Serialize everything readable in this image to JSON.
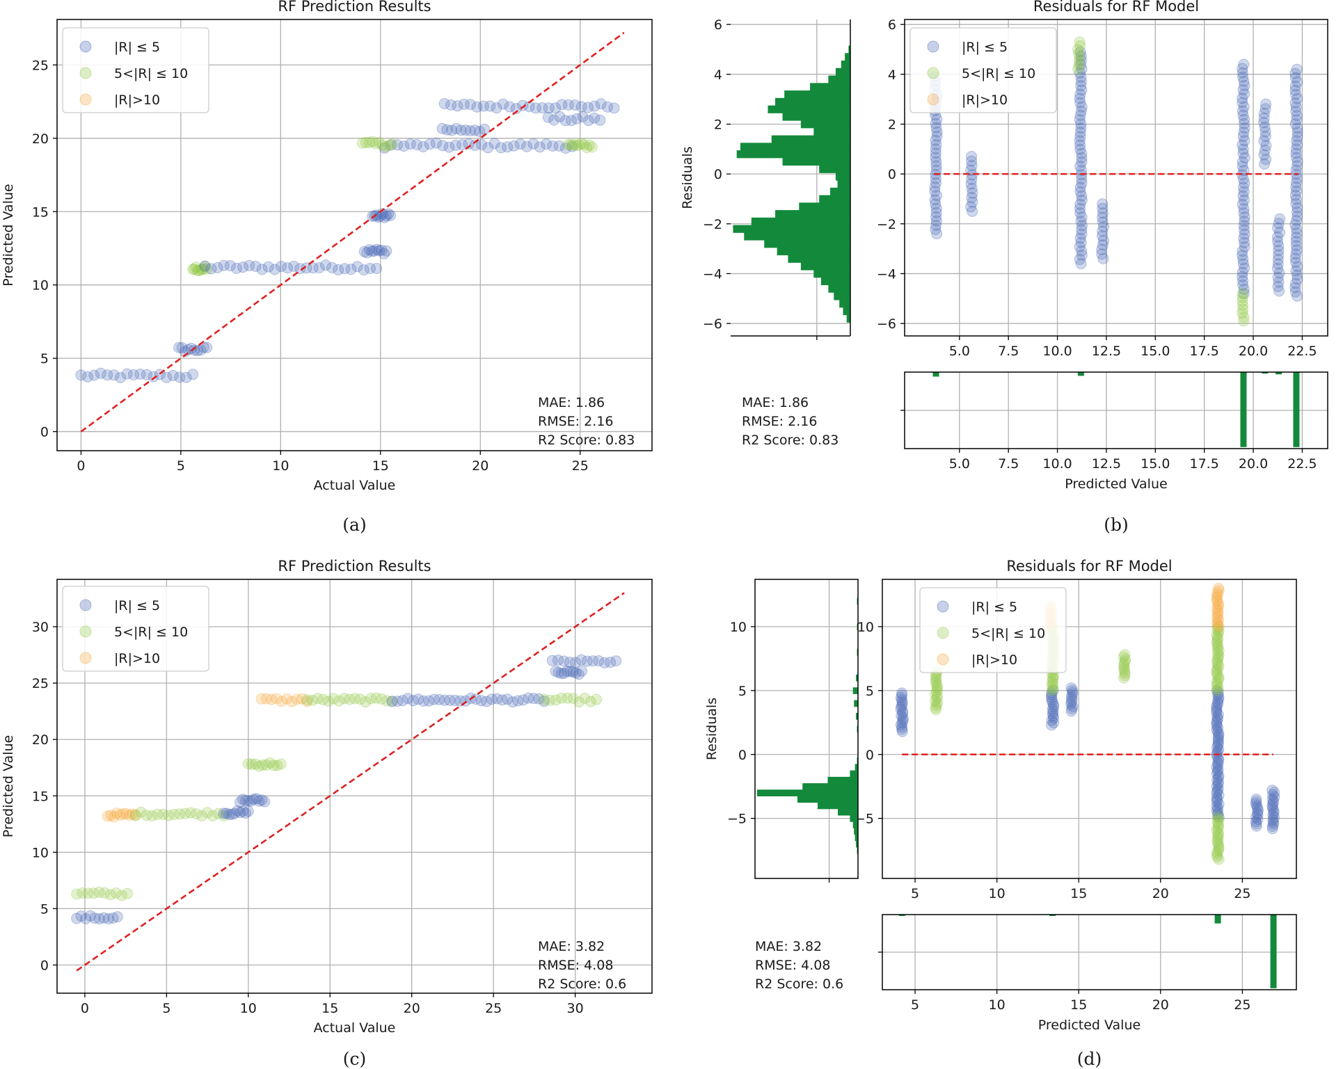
{
  "colors": {
    "low": "#4464b4",
    "mid": "#8fc641",
    "high": "#f6a63a",
    "ideal": "#e02020",
    "hist": "#138a3b",
    "grid": "#b0b0b0",
    "axis": "#000000"
  },
  "legend": {
    "low": "|R| ≤ 5",
    "mid": "5<|R| ≤ 10",
    "high": "|R|>10"
  },
  "chart_data": [
    {
      "id": "a",
      "type": "scatter",
      "caption": "(a)",
      "title": "RF Prediction Results",
      "xlabel": "Actual Value",
      "ylabel": "Predicted Value",
      "xlim": [
        -1.2,
        28.6
      ],
      "ylim": [
        -1.3,
        28.1
      ],
      "xticks": [
        "0",
        "5",
        "10",
        "15",
        "20",
        "25"
      ],
      "yticks": [
        "0",
        "5",
        "10",
        "15",
        "20",
        "25"
      ],
      "ideal_line": [
        [
          0,
          0
        ],
        [
          27.2,
          27.2
        ]
      ],
      "metrics": [
        "MAE: 1.86",
        "RMSE: 2.16",
        "R2 Score: 0.83"
      ],
      "clusters": [
        {
          "x": [
            0,
            5.6
          ],
          "y": 3.8,
          "cls": "low"
        },
        {
          "x": [
            4.9,
            6.3
          ],
          "y": 5.6,
          "cls": "low"
        },
        {
          "x": [
            5.6,
            6.3
          ],
          "y": 11.1,
          "cls": "mid"
        },
        {
          "x": [
            6.2,
            14.8
          ],
          "y": 11.2,
          "cls": "low"
        },
        {
          "x": [
            14.2,
            15.3
          ],
          "y": 12.3,
          "cls": "low"
        },
        {
          "x": [
            14.6,
            15.5
          ],
          "y": 14.7,
          "cls": "low"
        },
        {
          "x": [
            15.2,
            24.6
          ],
          "y": 19.5,
          "cls": "low"
        },
        {
          "x": [
            14.1,
            15.6
          ],
          "y": 19.6,
          "cls": "mid"
        },
        {
          "x": [
            24.4,
            25.6
          ],
          "y": 19.5,
          "cls": "mid"
        },
        {
          "x": [
            18.1,
            20.2
          ],
          "y": 20.6,
          "cls": "low"
        },
        {
          "x": [
            18.2,
            26.7
          ],
          "y": 22.2,
          "cls": "low"
        },
        {
          "x": [
            23.4,
            26.0
          ],
          "y": 21.3,
          "cls": "low"
        }
      ]
    },
    {
      "id": "b",
      "type": "scatter",
      "caption": "(b)",
      "title": "Residuals for RF Model",
      "xlabel": "Predicted Value",
      "ylabel": "Residuals",
      "xlim": [
        2.2,
        23.8
      ],
      "ylim": [
        -6.5,
        6.2
      ],
      "xticks": [
        "5.0",
        "7.5",
        "10.0",
        "12.5",
        "15.0",
        "17.5",
        "20.0",
        "22.5"
      ],
      "yticks": [
        "−6",
        "−4",
        "−2",
        "0",
        "2",
        "4",
        "6"
      ],
      "zero_line": [
        3.7,
        22.3
      ],
      "metrics": [
        "MAE: 1.86",
        "RMSE: 2.16",
        "R2 Score: 0.83"
      ],
      "columns": [
        {
          "x": 3.8,
          "y": [
            -2.4,
            3.9
          ],
          "cls": "low"
        },
        {
          "x": 5.6,
          "y": [
            -1.5,
            0.7
          ],
          "cls": "low"
        },
        {
          "x": 11.2,
          "y": [
            -3.6,
            4.9
          ],
          "cls": "low"
        },
        {
          "x": 11.1,
          "y": [
            4.2,
            5.3
          ],
          "cls": "mid"
        },
        {
          "x": 12.3,
          "y": [
            -3.4,
            -1.2
          ],
          "cls": "low"
        },
        {
          "x": 19.5,
          "y": [
            -4.8,
            4.4
          ],
          "cls": "low"
        },
        {
          "x": 19.5,
          "y": [
            -5.9,
            -4.8
          ],
          "cls": "mid"
        },
        {
          "x": 20.6,
          "y": [
            0.4,
            2.8
          ],
          "cls": "low"
        },
        {
          "x": 21.3,
          "y": [
            -4.7,
            -1.8
          ],
          "cls": "low"
        },
        {
          "x": 22.2,
          "y": [
            -4.9,
            4.2
          ],
          "cls": "low"
        }
      ],
      "hist_y": {
        "bins": [
          -5.8,
          -5.5,
          -5.2,
          -4.9,
          -4.6,
          -4.3,
          -4.0,
          -3.7,
          -3.4,
          -3.1,
          -2.8,
          -2.5,
          -2.2,
          -1.9,
          -1.6,
          -1.3,
          -1.0,
          -0.7,
          -0.4,
          -0.1,
          0.2,
          0.5,
          0.8,
          1.1,
          1.4,
          1.7,
          2.0,
          2.3,
          2.6,
          2.9,
          3.2,
          3.5,
          3.8,
          4.1,
          4.4,
          4.7,
          5.0
        ],
        "counts": [
          2,
          4,
          6,
          9,
          12,
          16,
          20,
          27,
          34,
          40,
          47,
          58,
          64,
          54,
          41,
          28,
          17,
          11,
          7,
          8,
          17,
          37,
          62,
          60,
          43,
          20,
          27,
          37,
          45,
          41,
          36,
          22,
          12,
          8,
          5,
          3,
          1
        ]
      },
      "hist_x": {
        "x": [
          3.8,
          11.2,
          19.5,
          20.6,
          21.3,
          22.2
        ],
        "counts": [
          6,
          5,
          100,
          2,
          3,
          100
        ]
      }
    },
    {
      "id": "c",
      "type": "scatter",
      "caption": "(c)",
      "title": "RF Prediction Results",
      "xlabel": "Actual Value",
      "ylabel": "Predicted Value",
      "xlim": [
        -1.7,
        34.7
      ],
      "ylim": [
        -2.5,
        34.2
      ],
      "xticks": [
        "0",
        "5",
        "10",
        "15",
        "20",
        "25",
        "30"
      ],
      "yticks": [
        "0",
        "5",
        "10",
        "15",
        "20",
        "25",
        "30"
      ],
      "ideal_line": [
        [
          -0.5,
          -0.5
        ],
        [
          33.0,
          33.0
        ]
      ],
      "metrics": [
        "MAE: 3.82",
        "RMSE: 4.08",
        "R2 Score: 0.6"
      ],
      "clusters": [
        {
          "x": [
            -0.5,
            2.0
          ],
          "y": 4.2,
          "cls": "low"
        },
        {
          "x": [
            -0.5,
            2.6
          ],
          "y": 6.3,
          "cls": "mid"
        },
        {
          "x": [
            1.4,
            3.1
          ],
          "y": 13.3,
          "cls": "high"
        },
        {
          "x": [
            3.1,
            8.5
          ],
          "y": 13.4,
          "cls": "mid"
        },
        {
          "x": [
            8.5,
            10.0
          ],
          "y": 13.5,
          "cls": "low"
        },
        {
          "x": [
            9.5,
            11.0
          ],
          "y": 14.6,
          "cls": "low"
        },
        {
          "x": [
            10.0,
            12.0
          ],
          "y": 17.8,
          "cls": "mid"
        },
        {
          "x": [
            10.8,
            13.6
          ],
          "y": 23.5,
          "cls": "high"
        },
        {
          "x": [
            13.6,
            18.8
          ],
          "y": 23.5,
          "cls": "mid"
        },
        {
          "x": [
            18.8,
            28.1
          ],
          "y": 23.5,
          "cls": "low"
        },
        {
          "x": [
            28.1,
            31.3
          ],
          "y": 23.5,
          "cls": "mid"
        },
        {
          "x": [
            28.6,
            32.5
          ],
          "y": 26.9,
          "cls": "low"
        },
        {
          "x": [
            28.8,
            30.4
          ],
          "y": 25.9,
          "cls": "low"
        }
      ]
    },
    {
      "id": "d",
      "type": "scatter",
      "caption": "(d)",
      "title": "Residuals for RF Model",
      "xlabel": "Predicted Value",
      "ylabel": "Residuals",
      "xlim": [
        3.0,
        28.3
      ],
      "ylim": [
        -9.7,
        13.7
      ],
      "xticks": [
        "5",
        "10",
        "15",
        "20",
        "25"
      ],
      "yticks": [
        "−5",
        "0",
        "5",
        "10"
      ],
      "zero_line": [
        4.2,
        26.9
      ],
      "metrics": [
        "MAE: 3.82",
        "RMSE: 4.08",
        "R2 Score: 0.6"
      ],
      "columns": [
        {
          "x": 4.2,
          "y": [
            1.8,
            4.8
          ],
          "cls": "low"
        },
        {
          "x": 6.3,
          "y": [
            3.5,
            6.5
          ],
          "cls": "mid"
        },
        {
          "x": 13.4,
          "y": [
            2.3,
            5.0
          ],
          "cls": "low"
        },
        {
          "x": 13.4,
          "y": [
            5.0,
            10.0
          ],
          "cls": "mid"
        },
        {
          "x": 13.3,
          "y": [
            10.0,
            11.6
          ],
          "cls": "high"
        },
        {
          "x": 14.6,
          "y": [
            3.4,
            5.2
          ],
          "cls": "low"
        },
        {
          "x": 17.8,
          "y": [
            6.0,
            7.8
          ],
          "cls": "mid"
        },
        {
          "x": 23.5,
          "y": [
            -4.9,
            5.0
          ],
          "cls": "low"
        },
        {
          "x": 23.5,
          "y": [
            5.0,
            10.0
          ],
          "cls": "mid"
        },
        {
          "x": 23.5,
          "y": [
            10.0,
            13.0
          ],
          "cls": "high"
        },
        {
          "x": 23.5,
          "y": [
            -8.2,
            -4.9
          ],
          "cls": "mid"
        },
        {
          "x": 25.9,
          "y": [
            -5.6,
            -3.5
          ],
          "cls": "low"
        },
        {
          "x": 26.9,
          "y": [
            -5.8,
            -2.8
          ],
          "cls": "low"
        }
      ],
      "hist_y": {
        "bins": [
          -7.5,
          -7.0,
          -6.5,
          -6.0,
          -5.5,
          -5.0,
          -4.5,
          -4.0,
          -3.5,
          -3.0,
          -2.5,
          -2.0,
          -1.5,
          -1.0,
          -0.5,
          0.0,
          0.5,
          1.0,
          2.0,
          3.0,
          4.0,
          5.0,
          6.0,
          8.0,
          10.0,
          12.0
        ],
        "counts": [
          1,
          2,
          3,
          4,
          5,
          8,
          20,
          40,
          60,
          100,
          55,
          30,
          8,
          3,
          1,
          0,
          0,
          0,
          1,
          2,
          4,
          5,
          2,
          1,
          1,
          1
        ]
      },
      "hist_x": {
        "x": [
          4.2,
          13.4,
          23.5,
          26.9
        ],
        "counts": [
          1,
          1,
          12,
          100
        ]
      }
    }
  ]
}
